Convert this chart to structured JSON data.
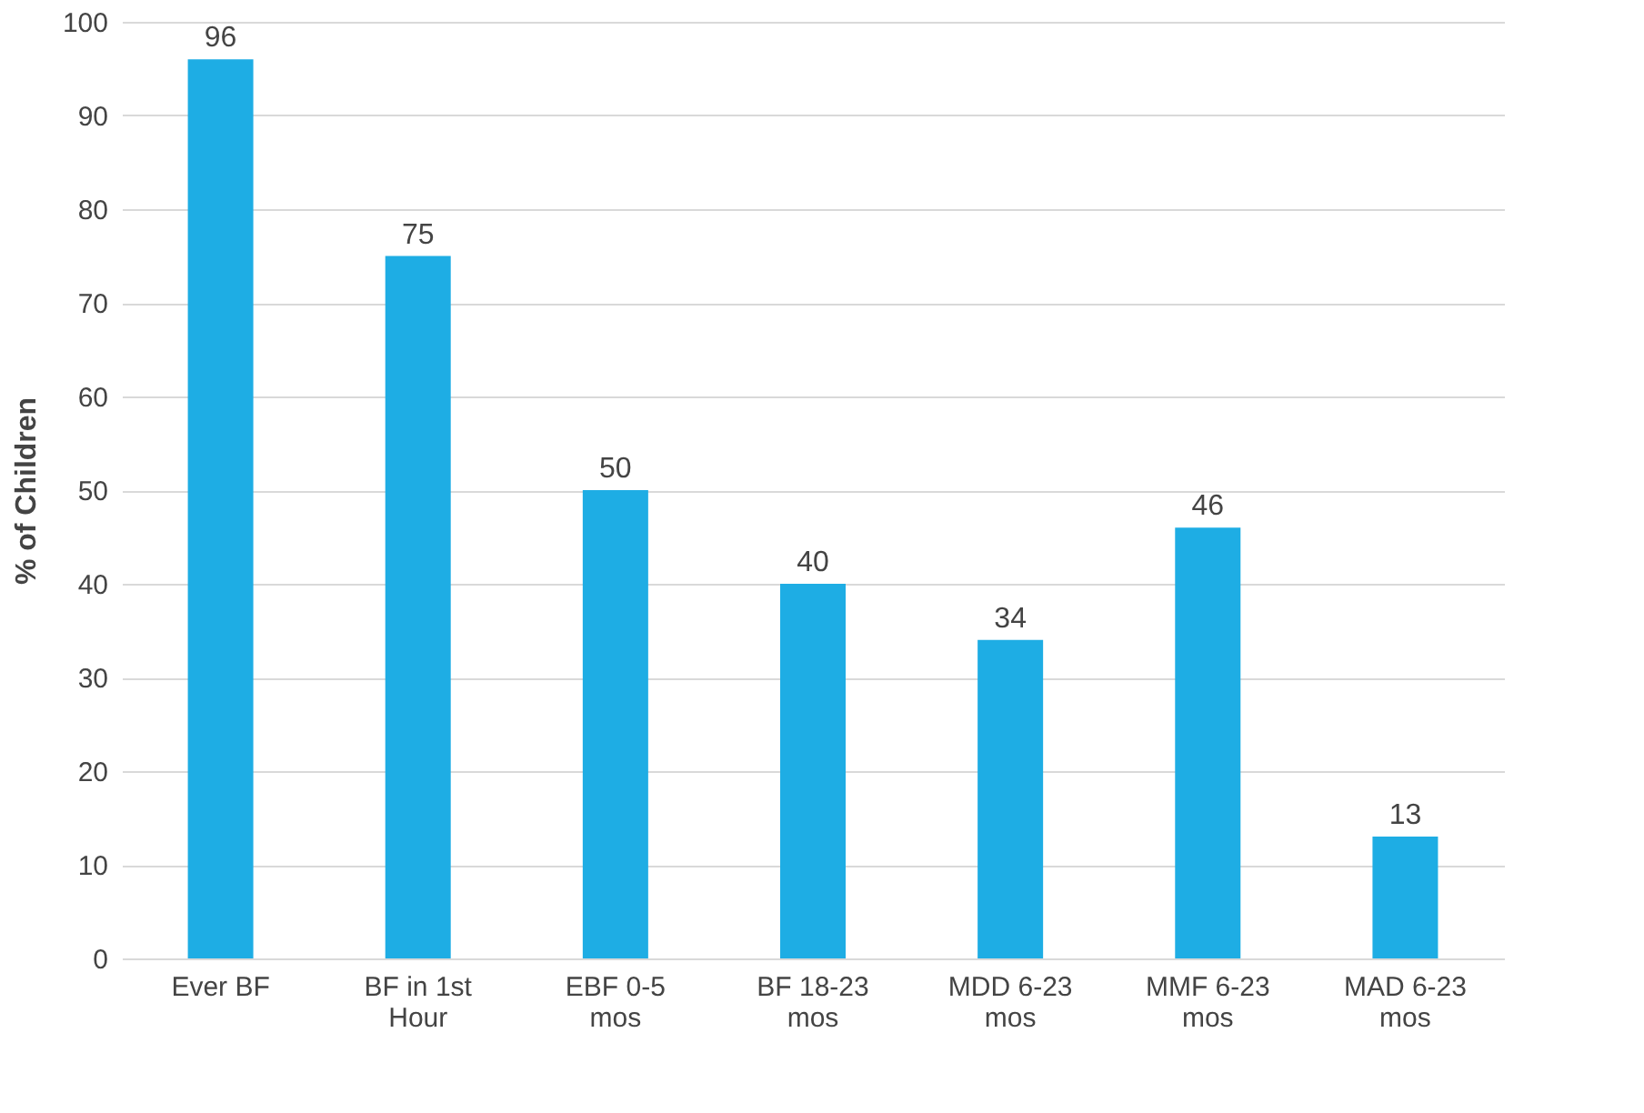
{
  "chart_data": {
    "type": "bar",
    "ylabel": "% of Children",
    "categories": [
      "Ever BF",
      "BF in 1st Hour",
      "EBF 0-5 mos",
      "BF 18-23 mos",
      "MDD 6-23 mos",
      "MMF 6-23 mos",
      "MAD 6-23 mos"
    ],
    "values": [
      96,
      75,
      50,
      40,
      34,
      46,
      13
    ],
    "color": "#1eade4",
    "ylim": [
      0,
      100
    ],
    "yticks": [
      0,
      10,
      20,
      30,
      40,
      50,
      60,
      70,
      80,
      90,
      100
    ],
    "grid": "y",
    "data_labels": true
  }
}
